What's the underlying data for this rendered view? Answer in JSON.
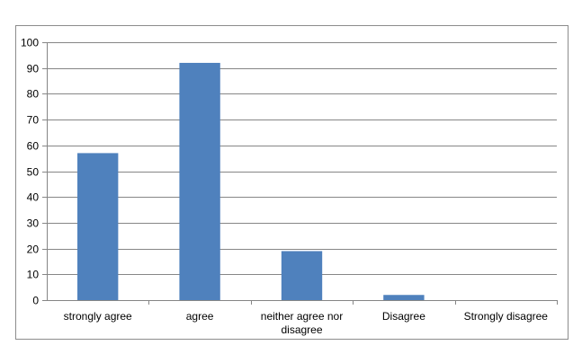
{
  "chart_data": {
    "type": "bar",
    "categories": [
      "strongly agree",
      "agree",
      "neither agree nor disagree",
      "Disagree",
      "Strongly disagree"
    ],
    "category_lines": [
      [
        "strongly agree"
      ],
      [
        "agree"
      ],
      [
        "neither agree nor",
        "disagree"
      ],
      [
        "Disagree"
      ],
      [
        "Strongly disagree"
      ]
    ],
    "values": [
      57,
      92,
      19,
      2,
      0
    ],
    "title": "",
    "xlabel": "",
    "ylabel": "",
    "ylim": [
      0,
      100
    ],
    "yticks": [
      0,
      10,
      20,
      30,
      40,
      50,
      60,
      70,
      80,
      90,
      100
    ],
    "grid": true,
    "legend": "none",
    "bar_color": "#4f81bd",
    "grid_color": "#868686",
    "axis_color": "#868686",
    "text_color": "#000000"
  }
}
